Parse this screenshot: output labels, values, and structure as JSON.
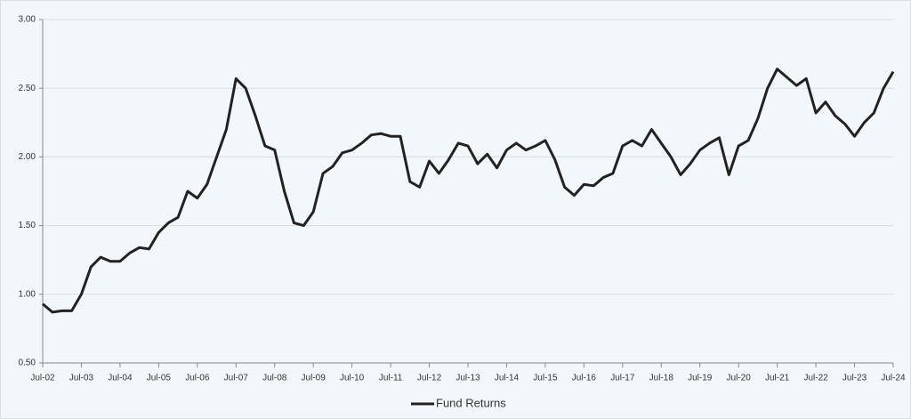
{
  "chart_data": {
    "type": "line",
    "x": [
      "2002-07",
      "2002-10",
      "2003-01",
      "2003-04",
      "2003-07",
      "2003-10",
      "2004-01",
      "2004-04",
      "2004-07",
      "2004-10",
      "2005-01",
      "2005-04",
      "2005-07",
      "2005-10",
      "2006-01",
      "2006-04",
      "2006-07",
      "2006-10",
      "2007-01",
      "2007-04",
      "2007-07",
      "2007-10",
      "2008-01",
      "2008-04",
      "2008-07",
      "2008-10",
      "2009-01",
      "2009-04",
      "2009-07",
      "2009-10",
      "2010-01",
      "2010-04",
      "2010-07",
      "2010-10",
      "2011-01",
      "2011-04",
      "2011-07",
      "2011-10",
      "2012-01",
      "2012-04",
      "2012-07",
      "2012-10",
      "2013-01",
      "2013-04",
      "2013-07",
      "2013-10",
      "2014-01",
      "2014-04",
      "2014-07",
      "2014-10",
      "2015-01",
      "2015-04",
      "2015-07",
      "2015-10",
      "2016-01",
      "2016-04",
      "2016-07",
      "2016-10",
      "2017-01",
      "2017-04",
      "2017-07",
      "2017-10",
      "2018-01",
      "2018-04",
      "2018-07",
      "2018-10",
      "2019-01",
      "2019-04",
      "2019-07",
      "2019-10",
      "2020-01",
      "2020-04",
      "2020-07",
      "2020-10",
      "2021-01",
      "2021-04",
      "2021-07",
      "2021-10",
      "2022-01",
      "2022-04",
      "2022-07",
      "2022-10",
      "2023-01",
      "2023-04",
      "2023-07",
      "2023-10",
      "2024-01",
      "2024-04",
      "2024-07"
    ],
    "series": [
      {
        "name": "Fund Returns",
        "color": "#222222",
        "values": [
          0.93,
          0.87,
          0.88,
          0.88,
          1.0,
          1.2,
          1.27,
          1.24,
          1.24,
          1.3,
          1.34,
          1.33,
          1.45,
          1.52,
          1.56,
          1.75,
          1.7,
          1.8,
          2.0,
          2.2,
          2.57,
          2.5,
          2.3,
          2.08,
          2.05,
          1.75,
          1.52,
          1.5,
          1.6,
          1.88,
          1.93,
          2.03,
          2.05,
          2.1,
          2.16,
          2.17,
          2.15,
          2.15,
          1.82,
          1.78,
          1.97,
          1.88,
          1.98,
          2.1,
          2.08,
          1.95,
          2.02,
          1.92,
          2.05,
          2.1,
          2.05,
          2.08,
          2.12,
          1.98,
          1.78,
          1.72,
          1.8,
          1.79,
          1.85,
          1.88,
          2.08,
          2.12,
          2.08,
          2.2,
          2.1,
          2.0,
          1.87,
          1.95,
          2.05,
          2.1,
          2.14,
          1.87,
          2.08,
          2.12,
          2.28,
          2.5,
          2.64,
          2.58,
          2.52,
          2.57,
          2.32,
          2.4,
          2.3,
          2.24,
          2.15,
          2.25,
          2.32,
          2.5,
          2.62
        ]
      }
    ],
    "xlim": [
      "2002-07",
      "2024-07"
    ],
    "xticks": [
      {
        "value": "2002-07",
        "label": "Jul-02"
      },
      {
        "value": "2003-07",
        "label": "Jul-03"
      },
      {
        "value": "2004-07",
        "label": "Jul-04"
      },
      {
        "value": "2005-07",
        "label": "Jul-05"
      },
      {
        "value": "2006-07",
        "label": "Jul-06"
      },
      {
        "value": "2007-07",
        "label": "Jul-07"
      },
      {
        "value": "2008-07",
        "label": "Jul-08"
      },
      {
        "value": "2009-07",
        "label": "Jul-09"
      },
      {
        "value": "2010-07",
        "label": "Jul-10"
      },
      {
        "value": "2011-07",
        "label": "Jul-11"
      },
      {
        "value": "2012-07",
        "label": "Jul-12"
      },
      {
        "value": "2013-07",
        "label": "Jul-13"
      },
      {
        "value": "2014-07",
        "label": "Jul-14"
      },
      {
        "value": "2015-07",
        "label": "Jul-15"
      },
      {
        "value": "2016-07",
        "label": "Jul-16"
      },
      {
        "value": "2017-07",
        "label": "Jul-17"
      },
      {
        "value": "2018-07",
        "label": "Jul-18"
      },
      {
        "value": "2019-07",
        "label": "Jul-19"
      },
      {
        "value": "2020-07",
        "label": "Jul-20"
      },
      {
        "value": "2021-07",
        "label": "Jul-21"
      },
      {
        "value": "2022-07",
        "label": "Jul-22"
      },
      {
        "value": "2023-07",
        "label": "Jul-23"
      },
      {
        "value": "2024-07",
        "label": "Jul-24"
      }
    ],
    "ylim": [
      0.5,
      3
    ],
    "yticks": [
      {
        "value": 0.5,
        "label": "0.50"
      },
      {
        "value": 1,
        "label": "1.00"
      },
      {
        "value": 1.5,
        "label": "1.50"
      },
      {
        "value": 2,
        "label": "2.00"
      },
      {
        "value": 2.5,
        "label": "2.50"
      },
      {
        "value": 3,
        "label": "3.00"
      }
    ],
    "grid": true,
    "legend": "bottom"
  }
}
